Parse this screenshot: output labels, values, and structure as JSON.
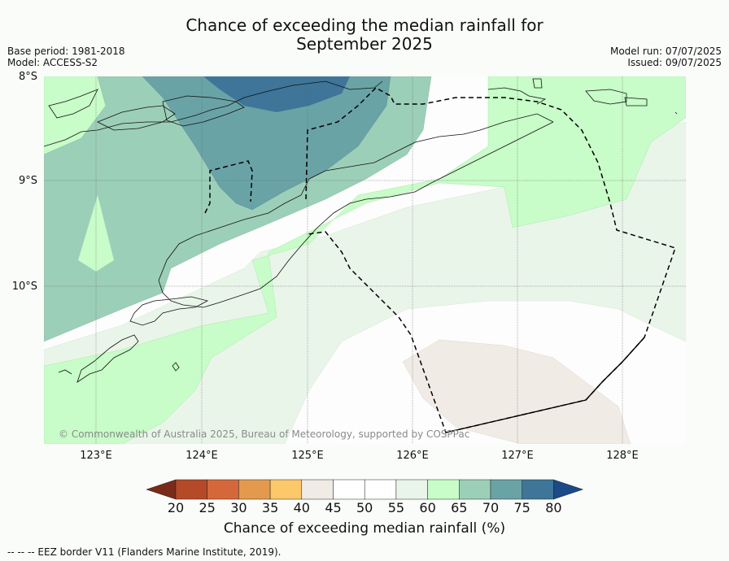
{
  "title_line1": "Chance of exceeding the median rainfall for",
  "title_line2": "September 2025",
  "base_period": "Base period: 1981-2018",
  "model": "Model: ACCESS-S2",
  "model_run": "Model run: 07/07/2025",
  "issued": "Issued: 09/07/2025",
  "lat_labels": [
    "8°S",
    "9°S",
    "10°S"
  ],
  "lon_labels": [
    "123°E",
    "124°E",
    "125°E",
    "126°E",
    "127°E",
    "128°E"
  ],
  "copyright": "© Commonwealth of Australia 2025, Bureau of Meteorology, supported by COSPPac",
  "colorbar": {
    "title": "Chance of exceeding median rainfall (%)",
    "ticks": [
      "20",
      "25",
      "30",
      "35",
      "40",
      "45",
      "50",
      "55",
      "60",
      "65",
      "70",
      "75",
      "80"
    ],
    "colors": [
      "#7a2a18",
      "#b54a28",
      "#d4683a",
      "#e39a4e",
      "#fcc86a",
      "#f0ebe5",
      "#ffffff",
      "#ffffff",
      "#eaf5ea",
      "#c8fcc8",
      "#9ccfb8",
      "#6aa3a6",
      "#3e7598",
      "#1a4a88"
    ]
  },
  "footer": "--  --  -- EEZ border V11 (Flanders Marine Institute, 2019)."
}
